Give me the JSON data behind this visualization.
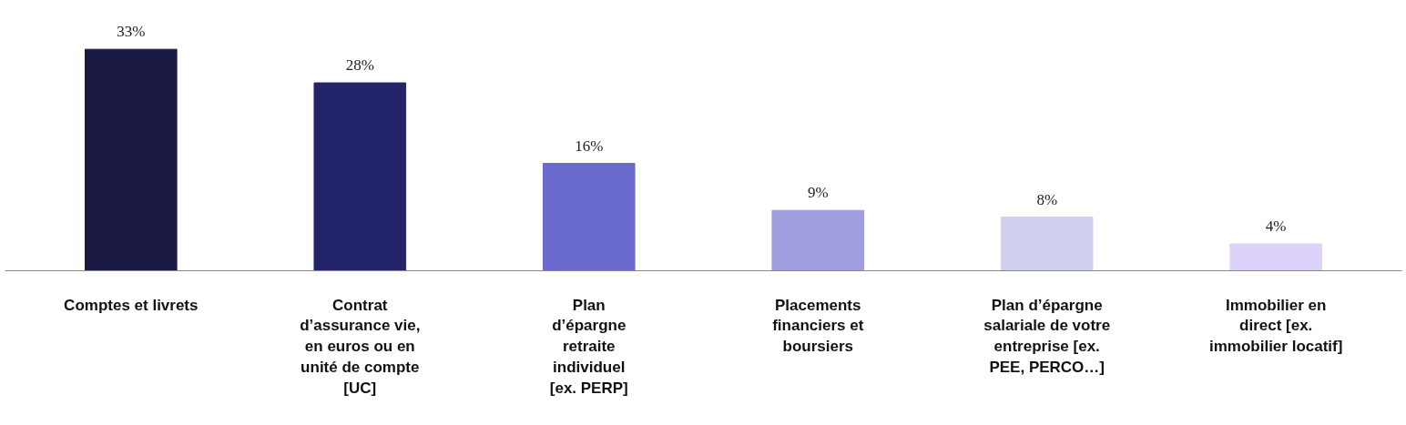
{
  "chart_data": {
    "type": "bar",
    "categories": [
      "Comptes et livrets",
      "Contrat\nd’assurance vie,\nen euros ou en\nunité de compte\n[UC]",
      "Plan\nd’épargne\nretraite\nindividuel\n[ex. PERP]",
      "Placements\nfinanciers et\nboursiers",
      "Plan d’épargne\nsalariale de votre\nentreprise [ex.\nPEE, PERCO…]",
      "Immobilier en\ndirect [ex.\nimmobilier locatif]"
    ],
    "values": [
      33,
      28,
      16,
      9,
      8,
      4
    ],
    "colors": [
      "#1a1a44",
      "#24246a",
      "#6b6bcf",
      "#a09fdf",
      "#cfcfee",
      "#ddd3fa"
    ],
    "value_labels": [
      "33%",
      "28%",
      "16%",
      "9%",
      "8%",
      "4%"
    ],
    "grid": false
  }
}
